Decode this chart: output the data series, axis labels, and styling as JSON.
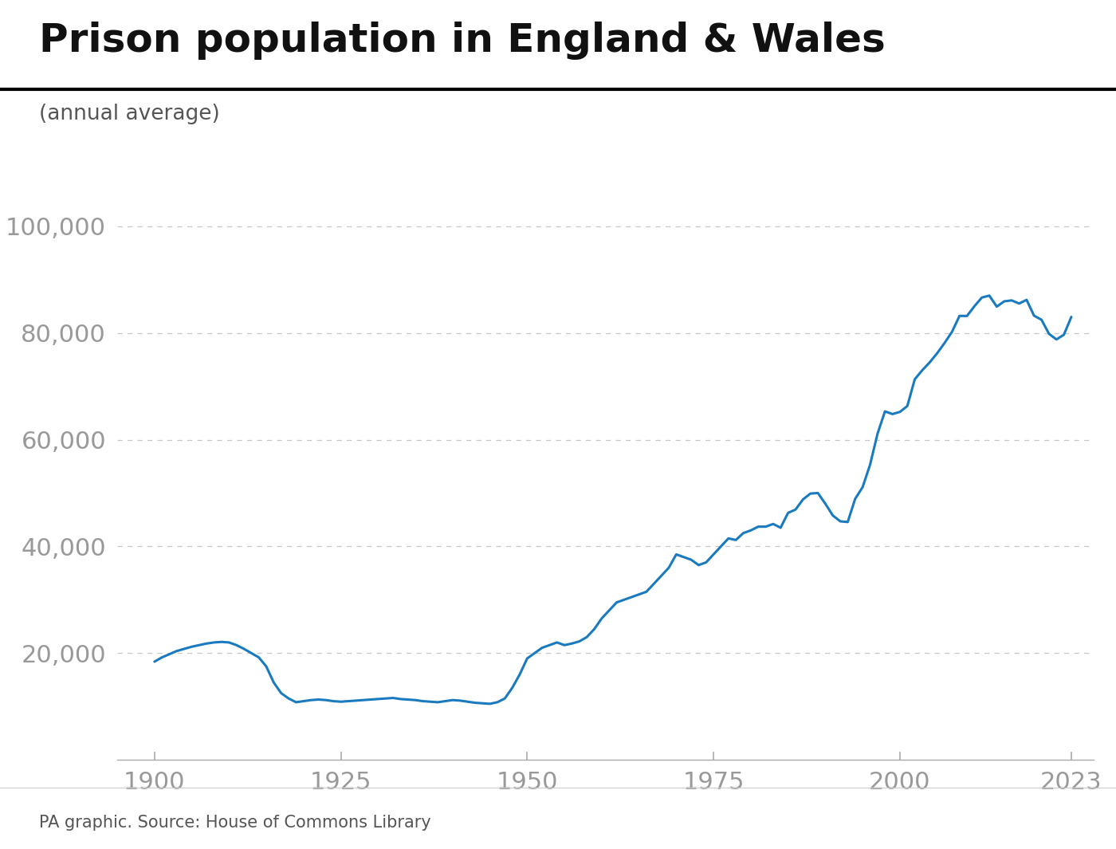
{
  "title": "Prison population in England & Wales",
  "subtitle": "(annual average)",
  "source": "PA graphic. Source: House of Commons Library",
  "line_color": "#1a7abf",
  "line_width": 2.2,
  "background_color": "#ffffff",
  "grid_color": "#aaaaaa",
  "tick_color": "#aaaaaa",
  "label_color": "#999999",
  "title_color": "#111111",
  "subtitle_color": "#555555",
  "source_color": "#555555",
  "ylim": [
    0,
    105000
  ],
  "yticks": [
    20000,
    40000,
    60000,
    80000,
    100000
  ],
  "xticks": [
    1900,
    1925,
    1950,
    1975,
    2000,
    2023
  ],
  "years": [
    1900,
    1901,
    1902,
    1903,
    1904,
    1905,
    1906,
    1907,
    1908,
    1909,
    1910,
    1911,
    1912,
    1913,
    1914,
    1915,
    1916,
    1917,
    1918,
    1919,
    1920,
    1921,
    1922,
    1923,
    1924,
    1925,
    1926,
    1927,
    1928,
    1929,
    1930,
    1931,
    1932,
    1933,
    1934,
    1935,
    1936,
    1937,
    1938,
    1939,
    1940,
    1941,
    1942,
    1943,
    1944,
    1945,
    1946,
    1947,
    1948,
    1949,
    1950,
    1951,
    1952,
    1953,
    1954,
    1955,
    1956,
    1957,
    1958,
    1959,
    1960,
    1961,
    1962,
    1963,
    1964,
    1965,
    1966,
    1967,
    1968,
    1969,
    1970,
    1971,
    1972,
    1973,
    1974,
    1975,
    1976,
    1977,
    1978,
    1979,
    1980,
    1981,
    1982,
    1983,
    1984,
    1985,
    1986,
    1987,
    1988,
    1989,
    1990,
    1991,
    1992,
    1993,
    1994,
    1995,
    1996,
    1997,
    1998,
    1999,
    2000,
    2001,
    2002,
    2003,
    2004,
    2005,
    2006,
    2007,
    2008,
    2009,
    2010,
    2011,
    2012,
    2013,
    2014,
    2015,
    2016,
    2017,
    2018,
    2019,
    2020,
    2021,
    2022,
    2023
  ],
  "values": [
    18400,
    19200,
    19800,
    20400,
    20800,
    21200,
    21500,
    21800,
    22000,
    22100,
    22000,
    21500,
    20800,
    20000,
    19200,
    17500,
    14500,
    12500,
    11500,
    10800,
    11000,
    11200,
    11300,
    11200,
    11000,
    10900,
    11000,
    11100,
    11200,
    11300,
    11400,
    11500,
    11600,
    11400,
    11300,
    11200,
    11000,
    10900,
    10800,
    11000,
    11200,
    11100,
    10900,
    10700,
    10600,
    10500,
    10800,
    11500,
    13500,
    16000,
    19000,
    20000,
    21000,
    21500,
    22000,
    21500,
    21800,
    22200,
    23000,
    24500,
    26500,
    28000,
    29500,
    30000,
    30500,
    31000,
    31500,
    33000,
    34500,
    36000,
    38500,
    38000,
    37500,
    36500,
    37000,
    38500,
    40000,
    41500,
    41200,
    42500,
    43000,
    43700,
    43700,
    44200,
    43500,
    46278,
    46900,
    48800,
    49900,
    50000,
    48000,
    45800,
    44700,
    44565,
    48900,
    51100,
    55300,
    61100,
    65300,
    64800,
    65194,
    66301,
    71323,
    73000,
    74488,
    76190,
    78127,
    80216,
    83194,
    83179,
    85002,
    86634,
    86993,
    84930,
    85925,
    86098,
    85509,
    86201,
    83229,
    82472,
    79843,
    78781,
    79656,
    83000
  ]
}
